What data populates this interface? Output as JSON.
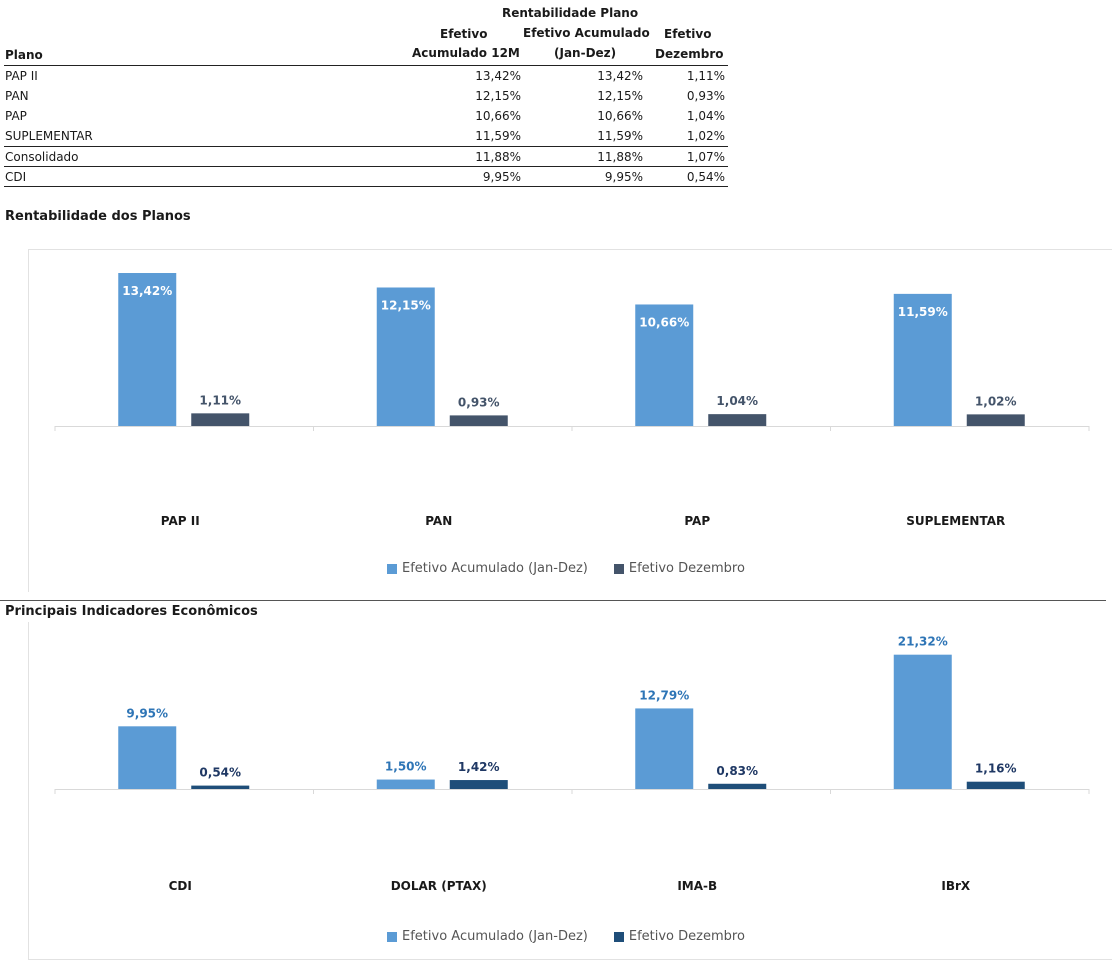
{
  "table": {
    "header": {
      "group": "Rentabilidade Plano",
      "col0": "Plano",
      "col1a": "Efetivo",
      "col1b": "Acumulado 12M",
      "col2a": "Efetivo Acumulado",
      "col2b": "(Jan-Dez)",
      "col3a": "Efetivo",
      "col3b": "Dezembro"
    },
    "rows": [
      {
        "plano": "PAP II",
        "acum12m": "13,42%",
        "acumJanDez": "13,42%",
        "dezembro": "1,11%"
      },
      {
        "plano": "PAN",
        "acum12m": "12,15%",
        "acumJanDez": "12,15%",
        "dezembro": "0,93%"
      },
      {
        "plano": "PAP",
        "acum12m": "10,66%",
        "acumJanDez": "10,66%",
        "dezembro": "1,04%"
      },
      {
        "plano": "SUPLEMENTAR",
        "acum12m": "11,59%",
        "acumJanDez": "11,59%",
        "dezembro": "1,02%"
      },
      {
        "plano": "Consolidado",
        "acum12m": "11,88%",
        "acumJanDez": "11,88%",
        "dezembro": "1,07%"
      },
      {
        "plano": "CDI",
        "acum12m": "9,95%",
        "acumJanDez": "9,95%",
        "dezembro": "0,54%"
      }
    ]
  },
  "sections": {
    "planos_title": "Rentabilidade dos Planos",
    "indicadores_title": "Principais Indicadores Econômicos"
  },
  "colors": {
    "accum": "#5b9bd5",
    "dez_planos": "#44546a",
    "dez_indicadores": "#1f4e79",
    "label_planos": "#44546a",
    "label_indicadores_accum": "#2e75b6",
    "label_indicadores_dez": "#1f3864"
  },
  "chart_data": [
    {
      "type": "bar",
      "categories": [
        "PAP II",
        "PAN",
        "PAP",
        "SUPLEMENTAR"
      ],
      "series": [
        {
          "name": "Efetivo Acumulado (Jan-Dez)",
          "values": [
            13.42,
            12.15,
            10.66,
            11.59
          ],
          "labels": [
            "13,42%",
            "12,15%",
            "10,66%",
            "11,59%"
          ]
        },
        {
          "name": "Efetivo Dezembro",
          "values": [
            1.11,
            0.93,
            1.04,
            1.02
          ],
          "labels": [
            "1,11%",
            "0,93%",
            "1,04%",
            "1,02%"
          ]
        }
      ],
      "legend": "bottom"
    },
    {
      "type": "bar",
      "categories": [
        "CDI",
        "DOLAR (PTAX)",
        "IMA-B",
        "IBrX"
      ],
      "series": [
        {
          "name": "Efetivo Acumulado (Jan-Dez)",
          "values": [
            9.95,
            1.5,
            12.79,
            21.32
          ],
          "labels": [
            "9,95%",
            "1,50%",
            "12,79%",
            "21,32%"
          ]
        },
        {
          "name": "Efetivo Dezembro",
          "values": [
            0.54,
            1.42,
            0.83,
            1.16
          ],
          "labels": [
            "0,54%",
            "1,42%",
            "0,83%",
            "1,16%"
          ]
        }
      ],
      "legend": "bottom"
    }
  ]
}
